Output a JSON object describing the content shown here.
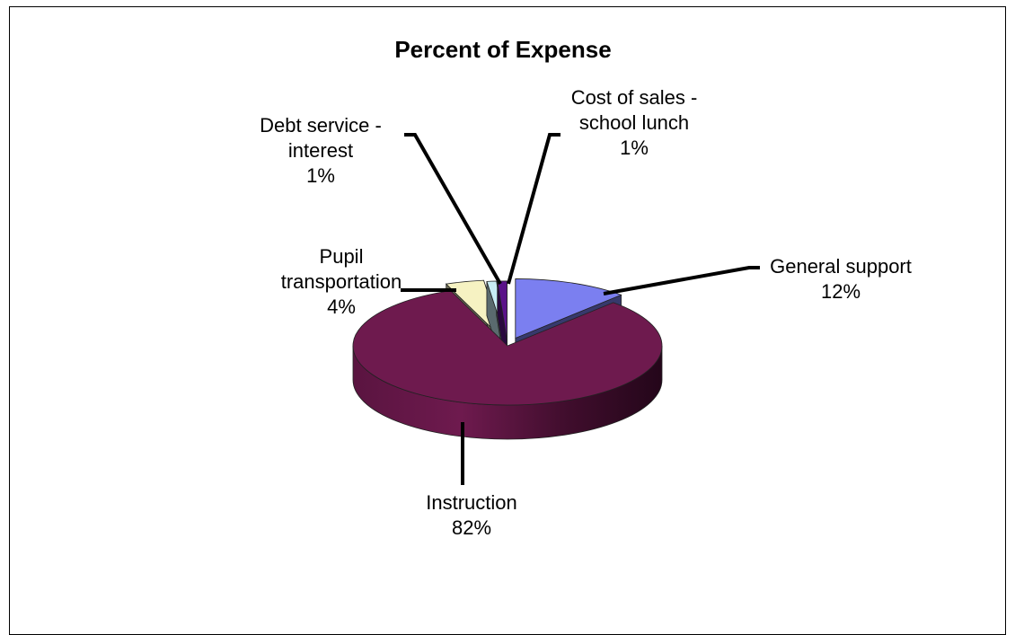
{
  "chart_data": {
    "type": "pie",
    "title": "Percent of Expense",
    "style": "3d-exploded",
    "slices": [
      {
        "key": "general",
        "name_lines": [
          "General support"
        ],
        "pct_label": "12%",
        "value": 12,
        "color": "#7b7ff0"
      },
      {
        "key": "instruction",
        "name_lines": [
          "Instruction"
        ],
        "pct_label": "82%",
        "value": 82,
        "color": "#6e1a4e"
      },
      {
        "key": "transport",
        "name_lines": [
          "Pupil",
          "transportation"
        ],
        "pct_label": "4%",
        "value": 4,
        "color": "#f6f2c2"
      },
      {
        "key": "debt",
        "name_lines": [
          "Debt service -",
          "interest"
        ],
        "pct_label": "1%",
        "value": 1,
        "color": "#c8ecf4"
      },
      {
        "key": "lunch",
        "name_lines": [
          "Cost of sales -",
          "school lunch"
        ],
        "pct_label": "1%",
        "value": 1,
        "color": "#5a1289"
      }
    ]
  }
}
